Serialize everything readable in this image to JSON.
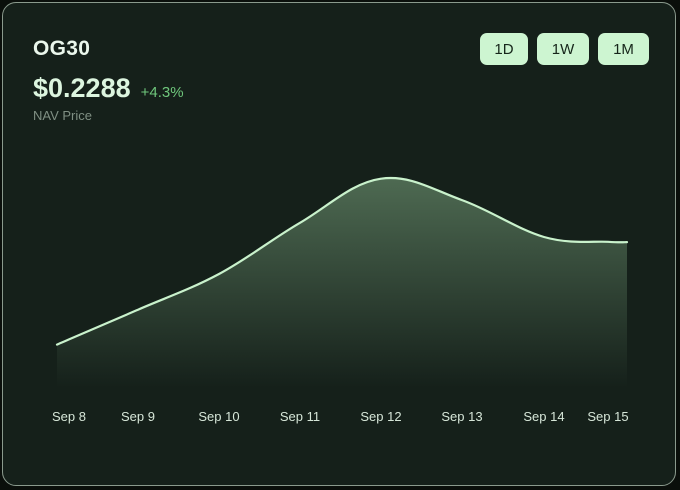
{
  "header": {
    "title": "OG30",
    "price": "$0.2288",
    "change": "+4.3%",
    "subtitle": "NAV Price"
  },
  "range_buttons": [
    {
      "label": "1D"
    },
    {
      "label": "1W"
    },
    {
      "label": "1M"
    }
  ],
  "colors": {
    "line": "#c9f2cc",
    "area_top": "#4e6a52",
    "area_bottom": "#15201a",
    "accent_positive": "#6fc77c"
  },
  "chart_data": {
    "type": "area",
    "title": "",
    "xlabel": "",
    "ylabel": "",
    "categories": [
      "Sep 8",
      "Sep 9",
      "Sep 10",
      "Sep 11",
      "Sep 12",
      "Sep 13",
      "Sep 14",
      "Sep 15"
    ],
    "x": [
      0,
      1,
      2,
      3,
      4,
      5,
      6,
      7
    ],
    "values": [
      0.218,
      0.2205,
      0.2235,
      0.2278,
      0.2315,
      0.2297,
      0.2266,
      0.2262
    ],
    "ylim": [
      0.2135,
      0.2345
    ],
    "grid": false,
    "legend": "none"
  }
}
